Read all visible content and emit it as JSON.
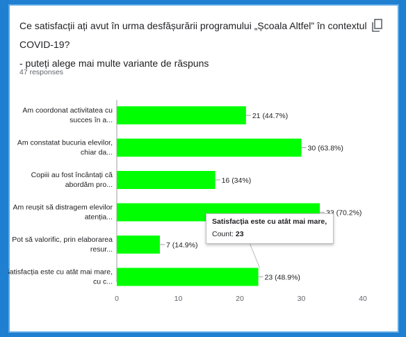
{
  "question": {
    "line1": "Ce satisfacții ați avut în urma desfășurării programului „Școala Altfel” în contextul COVID-19?",
    "line2": "- puteți alege mai multe variante de răspuns"
  },
  "responses_text": "47 responses",
  "icons": {
    "copy": "copy-icon"
  },
  "colors": {
    "bar": "#00ff00",
    "axis": "#9e9e9e",
    "text": "#202124",
    "muted": "#5f6368"
  },
  "tooltip": {
    "title": "Satisfacția este cu atât mai mare, cu c...",
    "count_label": "Count:",
    "count_value": "23"
  },
  "chart_data": {
    "type": "bar",
    "orientation": "horizontal",
    "categories": [
      [
        "Am coordonat activitatea cu",
        "succes în a..."
      ],
      [
        "Am constatat bucuria elevilor,",
        "chiar da..."
      ],
      [
        "Copiii au fost încântați că",
        "abordăm pro..."
      ],
      [
        "Am reușit să distragem elevilor",
        "atenția..."
      ],
      [
        "Pot să valorific, prin elaborarea",
        "resur..."
      ],
      [
        "Satisfacția este cu atât mai mare,",
        "cu c..."
      ]
    ],
    "values": [
      21,
      30,
      16,
      33,
      7,
      23
    ],
    "labels": [
      "21 (44.7%)",
      "30 (63.8%)",
      "16 (34%)",
      "33 (70.2%)",
      "7 (14.9%)",
      "23 (48.9%)"
    ],
    "xlim": [
      0,
      40
    ],
    "xticks": [
      0,
      10,
      20,
      30,
      40
    ]
  }
}
